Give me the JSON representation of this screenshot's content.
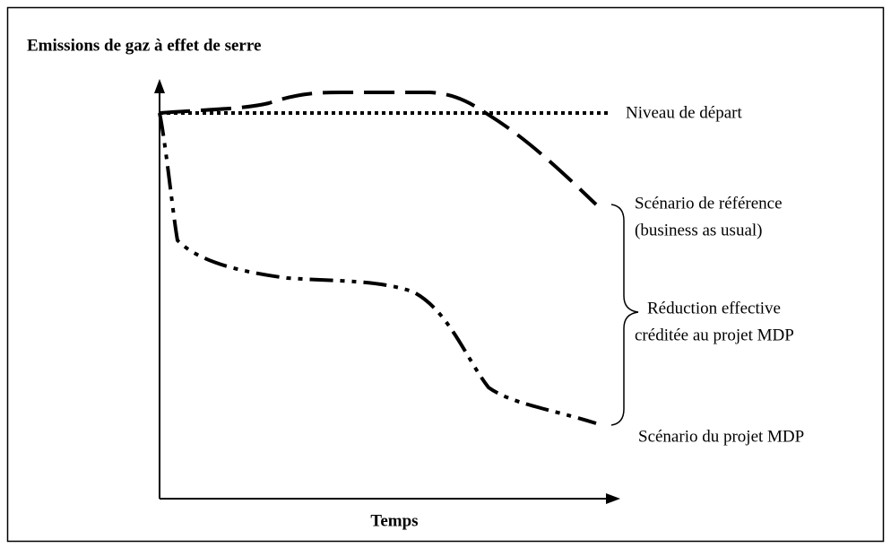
{
  "title": "Emissions de gaz à effet de serre",
  "x_axis_label": "Temps",
  "baseline": {
    "label": "Niveau de départ"
  },
  "reference_scenario": {
    "label": [
      "Scénario de référence",
      "(business as usual)"
    ]
  },
  "reduction": {
    "label": [
      "Réduction effective",
      "créditée au projet MDP"
    ]
  },
  "project_scenario": {
    "label": "Scénario du projet MDP"
  }
}
